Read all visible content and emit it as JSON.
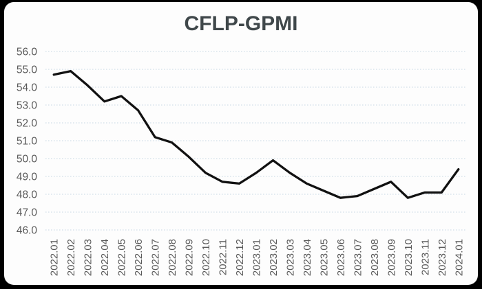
{
  "window": {
    "background_color": "#000000",
    "card_color": "#fdfdfd"
  },
  "chart_data": {
    "type": "line",
    "title": "CFLP-GPMI",
    "categories": [
      "2022.01",
      "2022.02",
      "2022.03",
      "2022.04",
      "2022.05",
      "2022.06",
      "2022.07",
      "2022.08",
      "2022.09",
      "2022.10",
      "2022.11",
      "2022.12",
      "2023.01",
      "2023.02",
      "2023.03",
      "2023.04",
      "2023.05",
      "2023.06",
      "2023.07",
      "2023.08",
      "2023.09",
      "2023.10",
      "2023.11",
      "2023.12",
      "2024.01"
    ],
    "values": [
      54.7,
      54.9,
      54.1,
      53.2,
      53.5,
      52.7,
      51.2,
      50.9,
      50.1,
      49.2,
      48.7,
      48.6,
      49.2,
      49.9,
      49.2,
      48.6,
      48.2,
      47.8,
      47.9,
      48.3,
      48.7,
      47.8,
      48.1,
      48.1,
      49.4
    ],
    "xlabel": "",
    "ylabel": "",
    "ylim": [
      46.0,
      56.0
    ],
    "ytick_step": 1.0,
    "ytick_format_decimals": 1,
    "grid": "horizontal-dotted",
    "legend": "none",
    "x_labels_rotated_degrees": 90,
    "line_color": "#111111",
    "line_width": 3.3,
    "grid_color": "#c8d8e4",
    "axis_label_color": "#595959",
    "title_color": "#3f474a"
  }
}
